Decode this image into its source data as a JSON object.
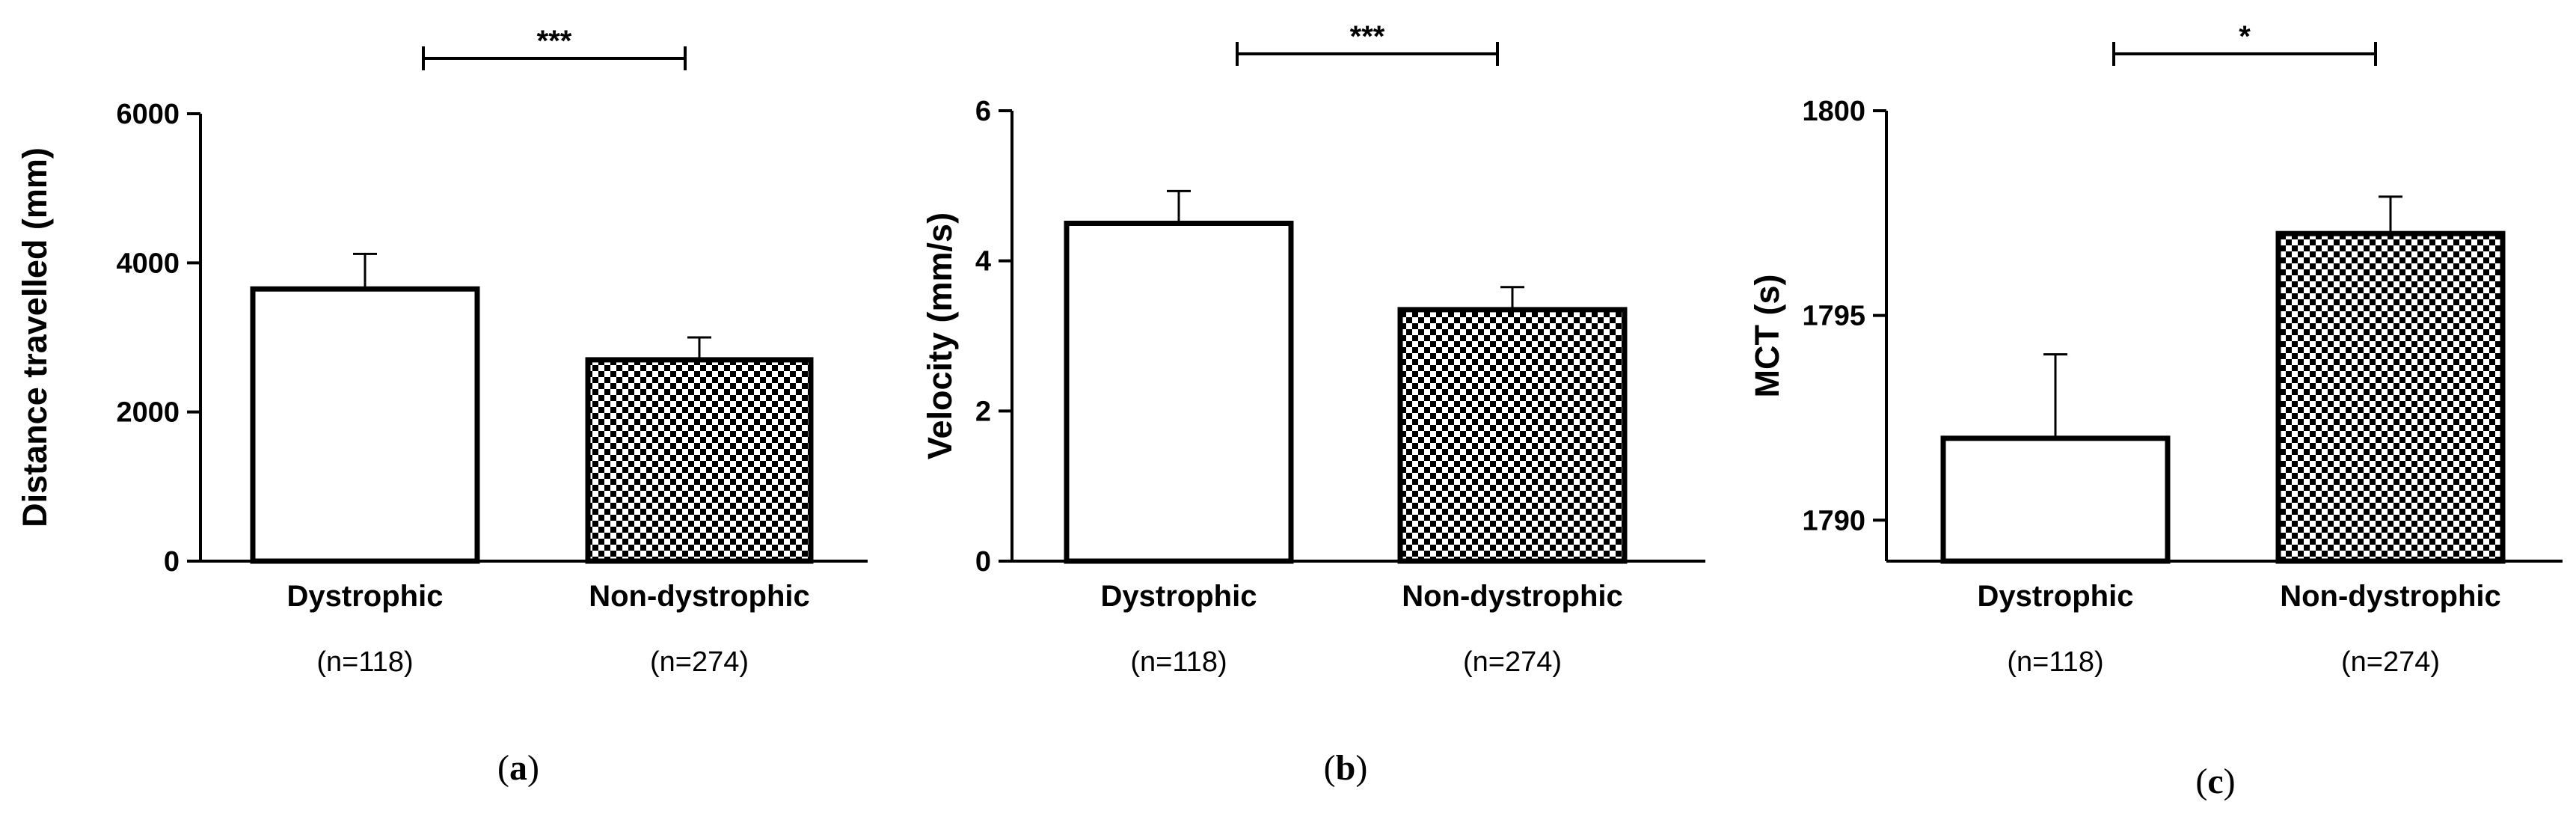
{
  "chart_data": [
    {
      "type": "bar",
      "panel_label": "a",
      "ylabel": "Distance travelled (mm)",
      "ylim": [
        0,
        6000
      ],
      "yticks": [
        0,
        2000,
        4000,
        6000
      ],
      "categories": [
        "Dystrophic",
        "Non-dystrophic"
      ],
      "sample_sizes": [
        "(n=118)",
        "(n=274)"
      ],
      "values": [
        3650,
        2700
      ],
      "error_upper": [
        4120,
        3000
      ],
      "fills": [
        "white",
        "checkered"
      ],
      "significance": "***"
    },
    {
      "type": "bar",
      "panel_label": "b",
      "ylabel": "Velocity (mm/s)",
      "ylim": [
        0,
        6
      ],
      "yticks": [
        0,
        2,
        4,
        6
      ],
      "categories": [
        "Dystrophic",
        "Non-dystrophic"
      ],
      "sample_sizes": [
        "(n=118)",
        "(n=274)"
      ],
      "values": [
        4.5,
        3.35
      ],
      "error_upper": [
        4.93,
        3.65
      ],
      "fills": [
        "white",
        "checkered"
      ],
      "significance": "***"
    },
    {
      "type": "bar",
      "panel_label": "c",
      "ylabel": "MCT (s)",
      "ylim": [
        1789,
        1800
      ],
      "yticks": [
        1790,
        1795,
        1800
      ],
      "categories": [
        "Dystrophic",
        "Non-dystrophic"
      ],
      "sample_sizes": [
        "(n=118)",
        "(n=274)"
      ],
      "values": [
        1792,
        1797
      ],
      "error_upper": [
        1794.05,
        1797.9
      ],
      "fills": [
        "white",
        "checkered"
      ],
      "significance": "*"
    }
  ]
}
